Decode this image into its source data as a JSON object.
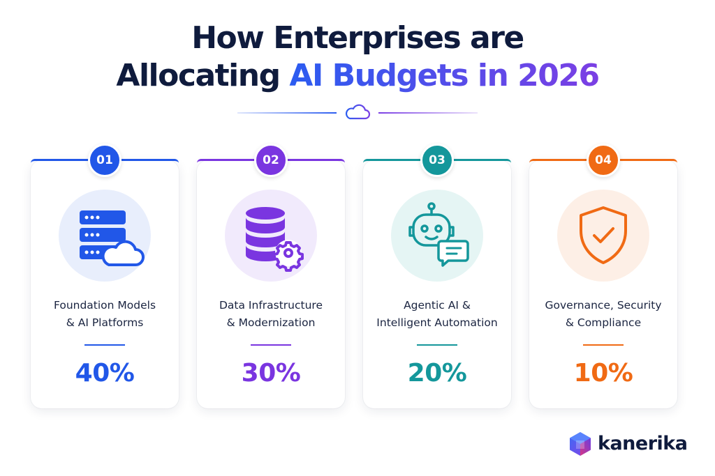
{
  "title": {
    "line1": "How Enterprises are",
    "line2_plain": "Allocating",
    "line2_highlight": "AI Budgets in 2026"
  },
  "divider_icon": "cloud-icon",
  "colors": {
    "navy": "#0f1b3d",
    "blue": "#2157e8",
    "purple": "#7a35e0",
    "teal": "#14979b",
    "orange": "#f06a14"
  },
  "cards": [
    {
      "number": "01",
      "label_line1": "Foundation Models",
      "label_line2": "& AI Platforms",
      "percent": "40%",
      "value": 40,
      "color": "#2157e8",
      "icon": "server-cloud-icon"
    },
    {
      "number": "02",
      "label_line1": "Data Infrastructure",
      "label_line2": "& Modernization",
      "percent": "30%",
      "value": 30,
      "color": "#7a35e0",
      "icon": "database-gear-icon"
    },
    {
      "number": "03",
      "label_line1": "Agentic AI &",
      "label_line2": "Intelligent Automation",
      "percent": "20%",
      "value": 20,
      "color": "#14979b",
      "icon": "robot-chat-icon"
    },
    {
      "number": "04",
      "label_line1": "Governance, Security",
      "label_line2": "& Compliance",
      "percent": "10%",
      "value": 10,
      "color": "#f06a14",
      "icon": "shield-check-icon"
    }
  ],
  "brand": {
    "name": "kanerika",
    "icon": "kanerika-logo-icon"
  }
}
